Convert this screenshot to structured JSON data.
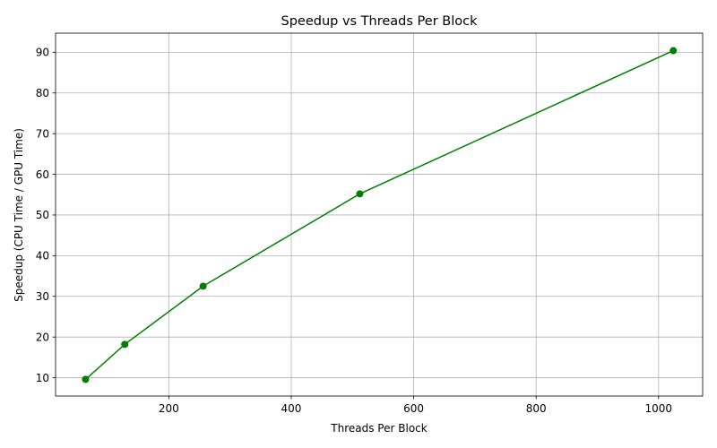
{
  "chart_data": {
    "type": "line",
    "title": "Speedup vs Threads Per Block",
    "xlabel": "Threads Per Block",
    "ylabel": "Speedup (CPU Time / GPU Time)",
    "xlim": [
      15,
      1072
    ],
    "ylim": [
      5.5,
      94.7
    ],
    "xticks": [
      200,
      400,
      600,
      800,
      1000
    ],
    "yticks": [
      10,
      20,
      30,
      40,
      50,
      60,
      70,
      80,
      90
    ],
    "grid": true,
    "series": [
      {
        "color": "#008000",
        "marker": "circle",
        "points": [
          {
            "x": 64,
            "y": 9.6
          },
          {
            "x": 128,
            "y": 18.2
          },
          {
            "x": 256,
            "y": 32.5
          },
          {
            "x": 512,
            "y": 55.2
          },
          {
            "x": 1024,
            "y": 90.4
          }
        ]
      }
    ]
  }
}
